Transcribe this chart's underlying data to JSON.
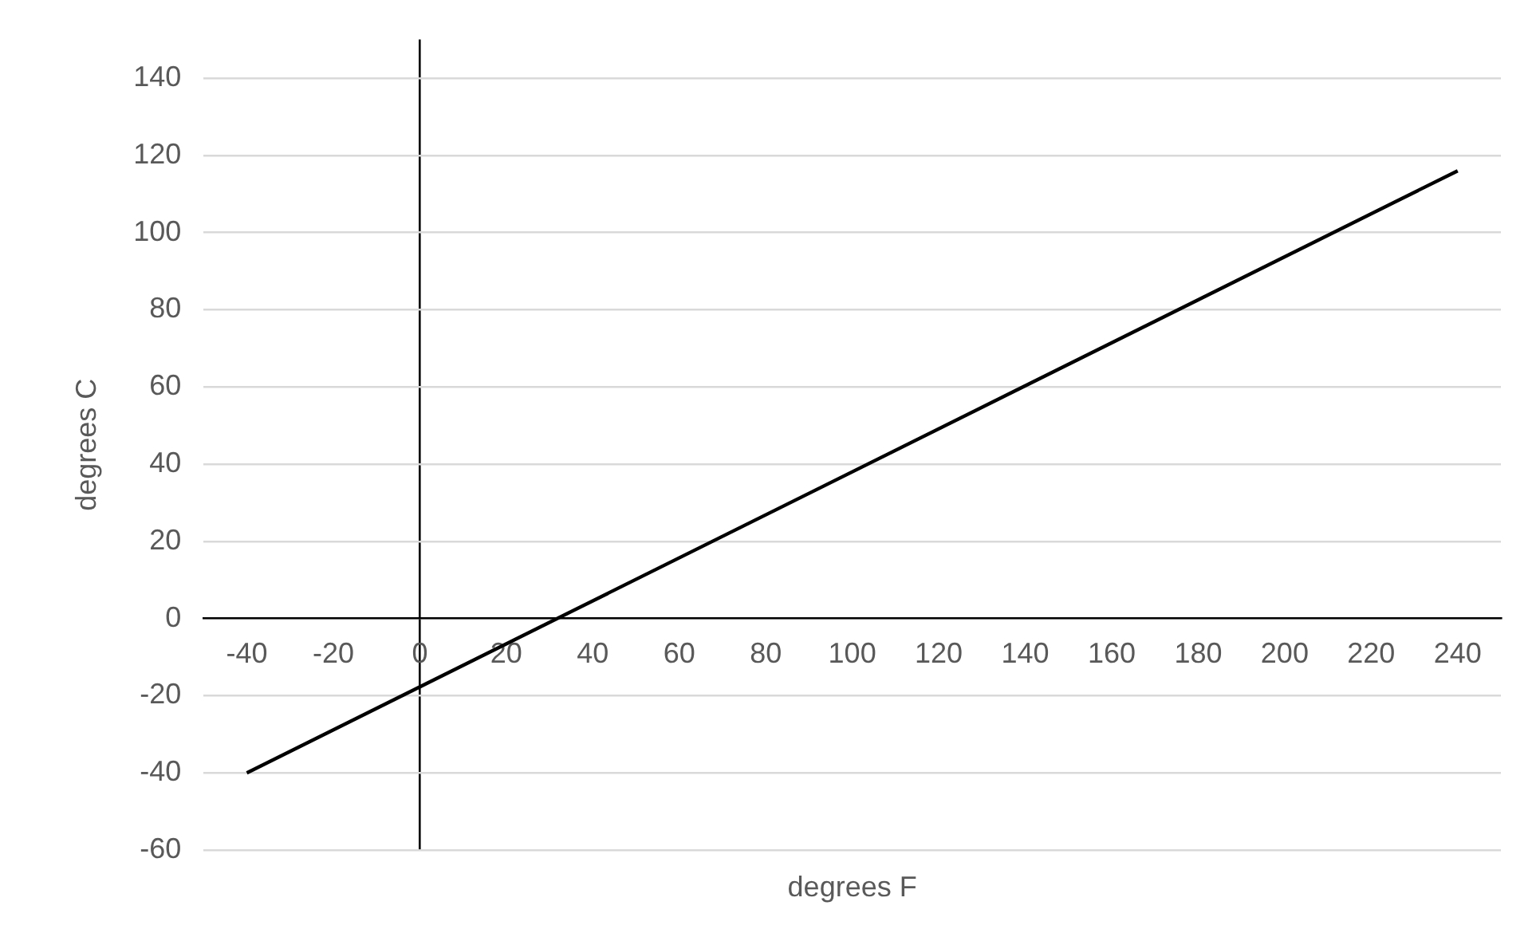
{
  "chart_data": {
    "type": "line",
    "xlabel": "degrees F",
    "ylabel": "degrees C",
    "x": [
      -40,
      240
    ],
    "series": [
      {
        "color": "#000000",
        "values": [
          -40,
          116
        ]
      }
    ],
    "xlim": [
      -50,
      250
    ],
    "xticks": [
      -40,
      -20,
      0,
      20,
      40,
      60,
      80,
      100,
      120,
      140,
      160,
      180,
      200,
      220,
      240
    ],
    "ylim": [
      -60,
      150
    ],
    "yticks": [
      -60,
      -40,
      -20,
      0,
      20,
      40,
      60,
      80,
      100,
      120,
      140
    ],
    "grid": "y",
    "legend": false,
    "marker": "none",
    "line_style": "solid"
  }
}
